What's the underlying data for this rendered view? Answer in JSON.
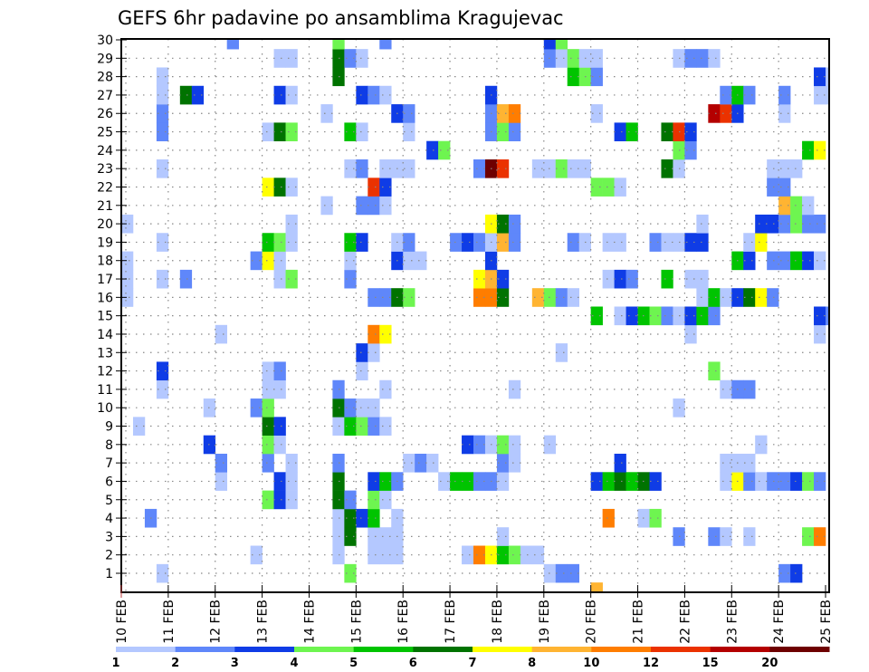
{
  "chart_data": {
    "type": "heatmap",
    "title": "GEFS 6hr padavine po ansamblima Kragujevac",
    "xlabel": "",
    "ylabel": "",
    "x_tick_labels": [
      "10 FEB",
      "11 FEB",
      "12 FEB",
      "13 FEB",
      "14 FEB",
      "15 FEB",
      "16 FEB",
      "17 FEB",
      "18 FEB",
      "19 FEB",
      "20 FEB",
      "21 FEB",
      "22 FEB",
      "23 FEB",
      "24 FEB",
      "25 FEB"
    ],
    "x_step": "6hr",
    "x_steps_per_day": 4,
    "x_range_steps": [
      0,
      60
    ],
    "y_tick_labels": [
      "1",
      "2",
      "3",
      "4",
      "5",
      "6",
      "7",
      "8",
      "9",
      "10",
      "11",
      "12",
      "13",
      "14",
      "15",
      "16",
      "17",
      "18",
      "19",
      "20",
      "21",
      "22",
      "23",
      "24",
      "25",
      "26",
      "27",
      "28",
      "29",
      "30"
    ],
    "y_range": [
      0,
      30
    ],
    "grid": "dotted",
    "colorbar": {
      "position": "bottom",
      "labels": [
        "1",
        "2",
        "3",
        "4",
        "5",
        "6",
        "7",
        "8",
        "10",
        "12",
        "15",
        "20"
      ],
      "colors": [
        "#b4c8ff",
        "#5f87fa",
        "#0f3ce6",
        "#6ef550",
        "#00c400",
        "#007300",
        "#ffff00",
        "#ffb432",
        "#ff7d00",
        "#eb3200",
        "#b40000",
        "#6e0000"
      ]
    },
    "cells_note": "member -> list of [6hr step index from 10 FEB 00z, color bin index]",
    "cells": {
      "30": [
        [
          9,
          1
        ],
        [
          18,
          3
        ],
        [
          22,
          1
        ],
        [
          36,
          2
        ],
        [
          37,
          3
        ]
      ],
      "29": [
        [
          13,
          0
        ],
        [
          14,
          0
        ],
        [
          18,
          5
        ],
        [
          19,
          1
        ],
        [
          20,
          0
        ],
        [
          36,
          1
        ],
        [
          37,
          0
        ],
        [
          38,
          3
        ],
        [
          39,
          0
        ],
        [
          40,
          0
        ],
        [
          47,
          0
        ],
        [
          48,
          1
        ],
        [
          49,
          1
        ],
        [
          50,
          0
        ]
      ],
      "28": [
        [
          3,
          0
        ],
        [
          18,
          5
        ],
        [
          38,
          4
        ],
        [
          39,
          3
        ],
        [
          40,
          1
        ],
        [
          59,
          2
        ],
        [
          60,
          0
        ]
      ],
      "27": [
        [
          3,
          0
        ],
        [
          5,
          5
        ],
        [
          6,
          2
        ],
        [
          13,
          2
        ],
        [
          14,
          0
        ],
        [
          20,
          2
        ],
        [
          21,
          1
        ],
        [
          22,
          0
        ],
        [
          31,
          2
        ],
        [
          51,
          1
        ],
        [
          52,
          4
        ],
        [
          53,
          1
        ],
        [
          56,
          1
        ],
        [
          59,
          0
        ],
        [
          60,
          0
        ]
      ],
      "26": [
        [
          3,
          1
        ],
        [
          17,
          0
        ],
        [
          23,
          2
        ],
        [
          24,
          1
        ],
        [
          31,
          1
        ],
        [
          32,
          7
        ],
        [
          33,
          8
        ],
        [
          40,
          0
        ],
        [
          50,
          10
        ],
        [
          51,
          9
        ],
        [
          52,
          2
        ],
        [
          56,
          0
        ]
      ],
      "25": [
        [
          3,
          1
        ],
        [
          12,
          0
        ],
        [
          13,
          5
        ],
        [
          14,
          3
        ],
        [
          19,
          4
        ],
        [
          20,
          0
        ],
        [
          24,
          0
        ],
        [
          31,
          1
        ],
        [
          32,
          3
        ],
        [
          33,
          1
        ],
        [
          42,
          2
        ],
        [
          43,
          4
        ],
        [
          46,
          5
        ],
        [
          47,
          9
        ],
        [
          48,
          2
        ]
      ],
      "24": [
        [
          26,
          2
        ],
        [
          27,
          3
        ],
        [
          47,
          3
        ],
        [
          48,
          1
        ],
        [
          58,
          4
        ],
        [
          59,
          6
        ]
      ],
      "23": [
        [
          3,
          0
        ],
        [
          19,
          0
        ],
        [
          20,
          1
        ],
        [
          22,
          0
        ],
        [
          23,
          0
        ],
        [
          24,
          0
        ],
        [
          30,
          1
        ],
        [
          31,
          11
        ],
        [
          32,
          9
        ],
        [
          35,
          0
        ],
        [
          36,
          0
        ],
        [
          37,
          3
        ],
        [
          38,
          0
        ],
        [
          39,
          0
        ],
        [
          46,
          5
        ],
        [
          47,
          0
        ],
        [
          55,
          0
        ],
        [
          56,
          0
        ],
        [
          57,
          0
        ]
      ],
      "22": [
        [
          12,
          6
        ],
        [
          13,
          5
        ],
        [
          14,
          0
        ],
        [
          21,
          9
        ],
        [
          22,
          2
        ],
        [
          40,
          3
        ],
        [
          41,
          3
        ],
        [
          42,
          0
        ],
        [
          55,
          1
        ],
        [
          56,
          1
        ]
      ],
      "21": [
        [
          17,
          0
        ],
        [
          20,
          1
        ],
        [
          21,
          1
        ],
        [
          22,
          0
        ],
        [
          56,
          7
        ],
        [
          57,
          3
        ],
        [
          58,
          0
        ]
      ],
      "20": [
        [
          0,
          0
        ],
        [
          14,
          0
        ],
        [
          31,
          6
        ],
        [
          32,
          5
        ],
        [
          33,
          1
        ],
        [
          49,
          0
        ],
        [
          54,
          2
        ],
        [
          55,
          2
        ],
        [
          56,
          1
        ],
        [
          57,
          3
        ],
        [
          58,
          1
        ],
        [
          59,
          1
        ]
      ],
      "19": [
        [
          3,
          0
        ],
        [
          12,
          4
        ],
        [
          13,
          3
        ],
        [
          14,
          0
        ],
        [
          19,
          4
        ],
        [
          20,
          2
        ],
        [
          23,
          0
        ],
        [
          24,
          1
        ],
        [
          28,
          1
        ],
        [
          29,
          2
        ],
        [
          30,
          1
        ],
        [
          31,
          0
        ],
        [
          32,
          7
        ],
        [
          33,
          1
        ],
        [
          38,
          1
        ],
        [
          39,
          0
        ],
        [
          41,
          0
        ],
        [
          42,
          0
        ],
        [
          45,
          1
        ],
        [
          46,
          0
        ],
        [
          47,
          0
        ],
        [
          48,
          2
        ],
        [
          49,
          2
        ],
        [
          53,
          0
        ],
        [
          54,
          6
        ]
      ],
      "18": [
        [
          0,
          0
        ],
        [
          11,
          1
        ],
        [
          12,
          6
        ],
        [
          13,
          0
        ],
        [
          19,
          0
        ],
        [
          23,
          2
        ],
        [
          24,
          0
        ],
        [
          25,
          0
        ],
        [
          31,
          2
        ],
        [
          52,
          4
        ],
        [
          53,
          2
        ],
        [
          55,
          1
        ],
        [
          56,
          1
        ],
        [
          57,
          4
        ],
        [
          58,
          2
        ],
        [
          59,
          0
        ]
      ],
      "17": [
        [
          0,
          0
        ],
        [
          3,
          0
        ],
        [
          5,
          1
        ],
        [
          13,
          0
        ],
        [
          14,
          3
        ],
        [
          19,
          1
        ],
        [
          30,
          6
        ],
        [
          31,
          7
        ],
        [
          32,
          2
        ],
        [
          41,
          0
        ],
        [
          42,
          2
        ],
        [
          43,
          1
        ],
        [
          46,
          4
        ],
        [
          48,
          0
        ],
        [
          49,
          0
        ]
      ],
      "16": [
        [
          0,
          0
        ],
        [
          21,
          1
        ],
        [
          22,
          1
        ],
        [
          23,
          5
        ],
        [
          24,
          3
        ],
        [
          30,
          8
        ],
        [
          31,
          8
        ],
        [
          32,
          5
        ],
        [
          35,
          7
        ],
        [
          36,
          3
        ],
        [
          37,
          1
        ],
        [
          38,
          0
        ],
        [
          49,
          0
        ],
        [
          50,
          4
        ],
        [
          51,
          0
        ],
        [
          52,
          2
        ],
        [
          53,
          5
        ],
        [
          54,
          6
        ],
        [
          55,
          1
        ]
      ],
      "15": [
        [
          40,
          4
        ],
        [
          42,
          0
        ],
        [
          43,
          2
        ],
        [
          44,
          4
        ],
        [
          45,
          3
        ],
        [
          46,
          1
        ],
        [
          47,
          0
        ],
        [
          48,
          2
        ],
        [
          49,
          4
        ],
        [
          50,
          1
        ],
        [
          59,
          2
        ],
        [
          60,
          1
        ]
      ],
      "14": [
        [
          8,
          0
        ],
        [
          21,
          8
        ],
        [
          22,
          6
        ],
        [
          48,
          0
        ],
        [
          59,
          0
        ]
      ],
      "13": [
        [
          20,
          2
        ],
        [
          21,
          0
        ],
        [
          37,
          0
        ]
      ],
      "12": [
        [
          3,
          2
        ],
        [
          12,
          0
        ],
        [
          13,
          1
        ],
        [
          20,
          0
        ],
        [
          50,
          3
        ]
      ],
      "11": [
        [
          3,
          0
        ],
        [
          12,
          0
        ],
        [
          13,
          0
        ],
        [
          18,
          1
        ],
        [
          22,
          0
        ],
        [
          33,
          0
        ],
        [
          51,
          0
        ],
        [
          52,
          1
        ],
        [
          53,
          1
        ]
      ],
      "10": [
        [
          7,
          0
        ],
        [
          11,
          1
        ],
        [
          12,
          3
        ],
        [
          18,
          5
        ],
        [
          19,
          1
        ],
        [
          20,
          0
        ],
        [
          21,
          0
        ],
        [
          47,
          0
        ]
      ],
      "9": [
        [
          1,
          0
        ],
        [
          12,
          5
        ],
        [
          13,
          2
        ],
        [
          18,
          0
        ],
        [
          19,
          4
        ],
        [
          20,
          3
        ],
        [
          21,
          1
        ],
        [
          22,
          0
        ]
      ],
      "8": [
        [
          7,
          2
        ],
        [
          12,
          3
        ],
        [
          13,
          0
        ],
        [
          29,
          2
        ],
        [
          30,
          1
        ],
        [
          31,
          0
        ],
        [
          32,
          3
        ],
        [
          33,
          0
        ],
        [
          36,
          0
        ],
        [
          54,
          0
        ]
      ],
      "7": [
        [
          8,
          1
        ],
        [
          12,
          1
        ],
        [
          14,
          0
        ],
        [
          18,
          1
        ],
        [
          24,
          0
        ],
        [
          25,
          1
        ],
        [
          26,
          0
        ],
        [
          32,
          1
        ],
        [
          33,
          0
        ],
        [
          42,
          2
        ],
        [
          51,
          0
        ],
        [
          52,
          0
        ],
        [
          53,
          0
        ]
      ],
      "6": [
        [
          8,
          0
        ],
        [
          13,
          2
        ],
        [
          14,
          0
        ],
        [
          18,
          5
        ],
        [
          21,
          2
        ],
        [
          22,
          4
        ],
        [
          23,
          1
        ],
        [
          27,
          0
        ],
        [
          28,
          4
        ],
        [
          29,
          4
        ],
        [
          30,
          1
        ],
        [
          31,
          1
        ],
        [
          32,
          0
        ],
        [
          40,
          2
        ],
        [
          41,
          4
        ],
        [
          42,
          5
        ],
        [
          43,
          4
        ],
        [
          44,
          5
        ],
        [
          45,
          2
        ],
        [
          51,
          0
        ],
        [
          52,
          6
        ],
        [
          53,
          1
        ],
        [
          54,
          0
        ],
        [
          55,
          1
        ],
        [
          56,
          1
        ],
        [
          57,
          2
        ],
        [
          58,
          3
        ],
        [
          59,
          1
        ]
      ],
      "5": [
        [
          12,
          3
        ],
        [
          13,
          2
        ],
        [
          14,
          0
        ],
        [
          18,
          5
        ],
        [
          19,
          1
        ],
        [
          21,
          3
        ],
        [
          22,
          0
        ]
      ],
      "4": [
        [
          2,
          1
        ],
        [
          18,
          0
        ],
        [
          19,
          5
        ],
        [
          20,
          2
        ],
        [
          21,
          4
        ],
        [
          23,
          0
        ],
        [
          41,
          8
        ],
        [
          44,
          0
        ],
        [
          45,
          3
        ]
      ],
      "3": [
        [
          18,
          0
        ],
        [
          19,
          5
        ],
        [
          21,
          0
        ],
        [
          22,
          0
        ],
        [
          23,
          0
        ],
        [
          32,
          0
        ],
        [
          47,
          1
        ],
        [
          50,
          1
        ],
        [
          51,
          0
        ],
        [
          53,
          0
        ],
        [
          58,
          3
        ],
        [
          59,
          8
        ]
      ],
      "2": [
        [
          11,
          0
        ],
        [
          18,
          0
        ],
        [
          21,
          0
        ],
        [
          22,
          0
        ],
        [
          23,
          0
        ],
        [
          29,
          0
        ],
        [
          30,
          8
        ],
        [
          31,
          6
        ],
        [
          32,
          4
        ],
        [
          33,
          3
        ],
        [
          34,
          0
        ],
        [
          35,
          0
        ]
      ],
      "1": [
        [
          3,
          0
        ],
        [
          19,
          3
        ],
        [
          36,
          0
        ],
        [
          37,
          1
        ],
        [
          38,
          1
        ],
        [
          56,
          1
        ],
        [
          57,
          2
        ]
      ],
      "0": [
        [
          40,
          7
        ]
      ]
    }
  }
}
